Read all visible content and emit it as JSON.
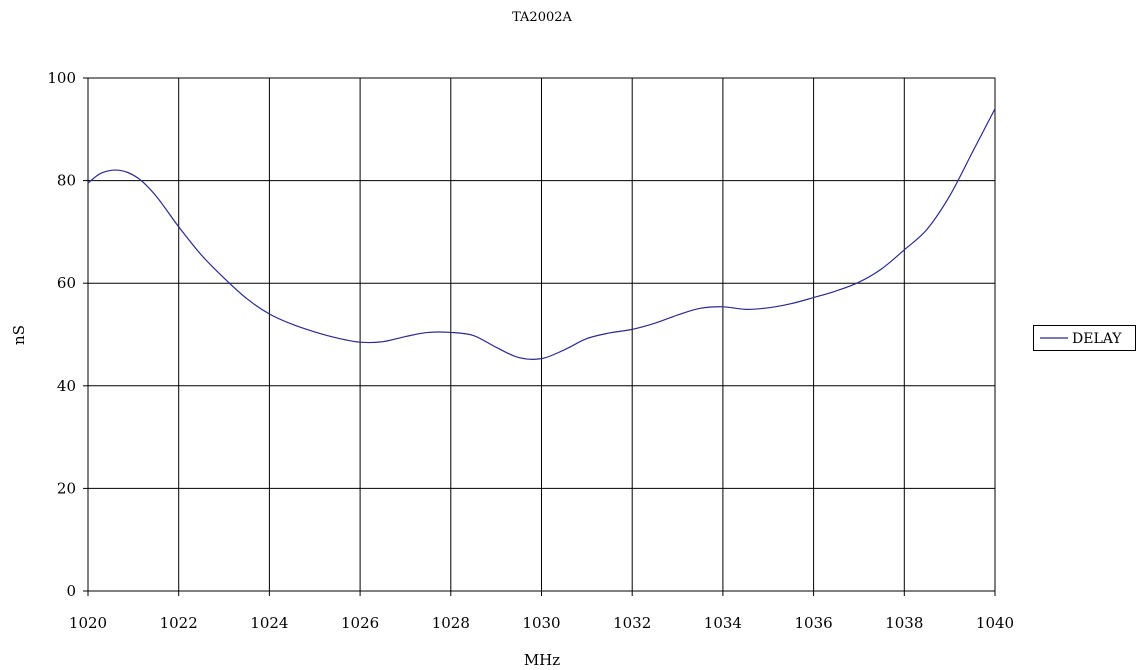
{
  "chart_data": {
    "type": "line",
    "title": "TA2002A",
    "xlabel": "MHz",
    "ylabel": "nS",
    "xlim": [
      1020,
      1040
    ],
    "ylim": [
      0,
      100
    ],
    "x_ticks": [
      "1020",
      "1022",
      "1024",
      "1026",
      "1028",
      "1030",
      "1032",
      "1034",
      "1036",
      "1038",
      "1040"
    ],
    "y_ticks": [
      "0",
      "20",
      "40",
      "60",
      "80",
      "100"
    ],
    "grid": true,
    "legend_position": "right",
    "series": [
      {
        "name": "DELAY",
        "color": "#2b2b8c",
        "x": [
          1020,
          1020.3,
          1020.7,
          1021.1,
          1021.5,
          1022,
          1022.5,
          1023,
          1023.5,
          1024,
          1024.5,
          1025,
          1025.5,
          1026,
          1026.5,
          1027,
          1027.5,
          1028,
          1028.5,
          1029,
          1029.5,
          1030,
          1030.5,
          1031,
          1031.5,
          1032,
          1032.5,
          1033,
          1033.5,
          1034,
          1034.5,
          1035,
          1035.5,
          1036,
          1036.5,
          1037,
          1037.5,
          1038,
          1038.5,
          1039,
          1039.5,
          1040
        ],
        "values": [
          79.5,
          81.5,
          82,
          80.5,
          77,
          71,
          65.5,
          61,
          57,
          54,
          52,
          50.5,
          49.3,
          48.5,
          48.6,
          49.6,
          50.4,
          50.4,
          49.8,
          47.5,
          45.5,
          45.3,
          47,
          49.2,
          50.3,
          51,
          52.2,
          53.8,
          55.1,
          55.4,
          54.9,
          55.2,
          56,
          57.2,
          58.5,
          60.2,
          62.8,
          66.5,
          70.5,
          77,
          85.5,
          94
        ]
      }
    ]
  }
}
